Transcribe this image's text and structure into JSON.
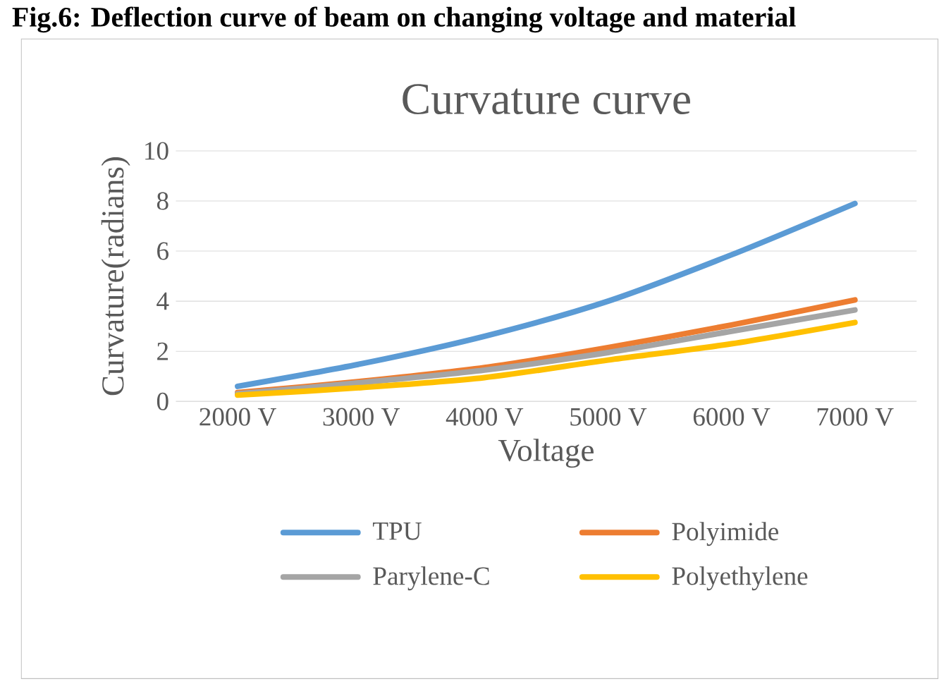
{
  "chart_data": {
    "type": "line",
    "title": "Curvature  curve",
    "xlabel": "Voltage",
    "ylabel": "Curvature(radians)",
    "annotations": [
      "Fig.6: Deflection curve of beam on changing voltage and material"
    ],
    "categories": [
      "2000 V",
      "3000 V",
      "4000 V",
      "5000 V",
      "6000 V",
      "7000 V"
    ],
    "series": [
      {
        "name": "TPU",
        "color": "#5b9bd5",
        "values": [
          0.6,
          1.5,
          2.6,
          4.0,
          5.85,
          7.9
        ]
      },
      {
        "name": "Polyimide",
        "color": "#ed7d31",
        "values": [
          0.35,
          0.8,
          1.35,
          2.15,
          3.05,
          4.05
        ]
      },
      {
        "name": "Parylene-C",
        "color": "#a5a5a5",
        "values": [
          0.3,
          0.75,
          1.25,
          1.95,
          2.8,
          3.65
        ]
      },
      {
        "name": "Polyethylene",
        "color": "#ffc000",
        "values": [
          0.25,
          0.55,
          0.95,
          1.65,
          2.3,
          3.15
        ]
      }
    ],
    "ylim": [
      0,
      10
    ],
    "yticks": [
      0,
      2,
      4,
      6,
      8,
      10
    ],
    "grid": "y",
    "legend": "bottom",
    "marker": "none",
    "line_style": "solid"
  }
}
